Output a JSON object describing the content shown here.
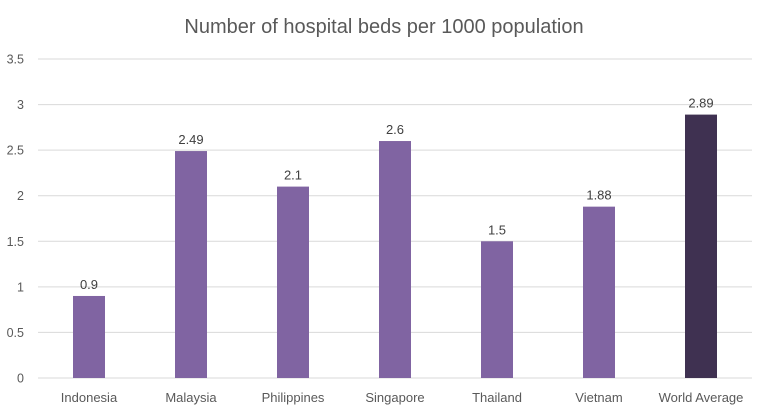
{
  "chart_data": {
    "type": "bar",
    "title": "Number of hospital beds per 1000 population",
    "xlabel": "",
    "ylabel": "",
    "categories": [
      "Indonesia",
      "Malaysia",
      "Philippines",
      "Singapore",
      "Thailand",
      "Vietnam",
      "World Average"
    ],
    "values": [
      0.9,
      2.49,
      2.1,
      2.6,
      1.5,
      1.88,
      2.89
    ],
    "data_labels": [
      "0.9",
      "2.49",
      "2.1",
      "2.6",
      "1.5",
      "1.88",
      "2.89"
    ],
    "ylim": [
      0,
      3.5
    ],
    "yticks": [
      "0",
      "0.5",
      "1",
      "1.5",
      "2",
      "2.5",
      "3",
      "3.5"
    ],
    "grid": true,
    "legend": "none",
    "colors": {
      "bar": "#8064a2",
      "highlight": "#3f3151",
      "grid": "#d9d9d9"
    },
    "highlight_category": "World Average"
  }
}
